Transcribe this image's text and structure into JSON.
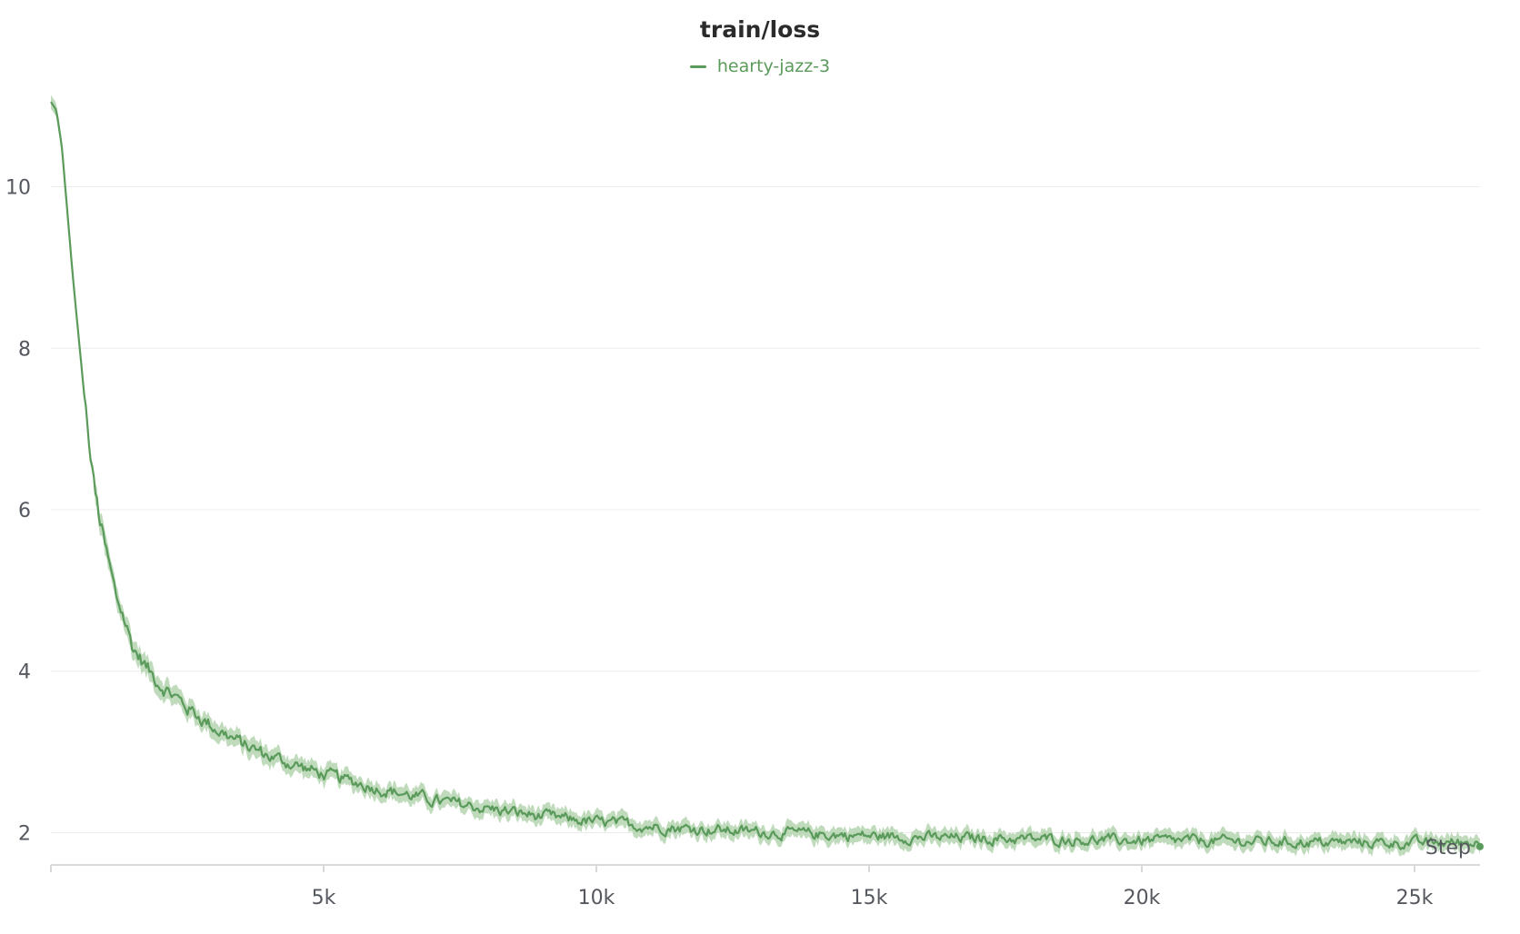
{
  "chart_data": {
    "type": "line",
    "title": "train/loss",
    "xlabel": "Step",
    "ylabel": "",
    "xlim": [
      0,
      26200
    ],
    "ylim": [
      1.6,
      11.3
    ],
    "x_ticks": [
      5000,
      10000,
      15000,
      20000,
      25000
    ],
    "x_tick_labels": [
      "5k",
      "10k",
      "15k",
      "20k",
      "25k"
    ],
    "y_ticks": [
      2,
      4,
      6,
      8,
      10
    ],
    "y_tick_labels": [
      "2",
      "4",
      "6",
      "8",
      "10"
    ],
    "grid": "horizontal",
    "legend": "top-center",
    "series": [
      {
        "name": "hearty-jazz-3",
        "color": "#5a9a5a",
        "band_color": "#a9cfa6",
        "x": [
          0,
          100,
          200,
          400,
          600,
          800,
          1000,
          1200,
          1300,
          1500,
          1800,
          2000,
          2500,
          3000,
          3500,
          4000,
          5000,
          6000,
          7000,
          8000,
          9000,
          10000,
          11000,
          12000,
          13000,
          14000,
          15000,
          16000,
          17000,
          18000,
          19000,
          20000,
          21000,
          22000,
          23000,
          24000,
          25000,
          26200
        ],
        "values": [
          11.05,
          10.95,
          10.5,
          8.9,
          7.5,
          6.2,
          5.5,
          4.9,
          4.75,
          4.3,
          4.0,
          3.85,
          3.55,
          3.3,
          3.1,
          2.95,
          2.72,
          2.55,
          2.4,
          2.3,
          2.2,
          2.13,
          2.08,
          2.04,
          2.01,
          1.98,
          1.96,
          1.94,
          1.93,
          1.92,
          1.91,
          1.9,
          1.9,
          1.89,
          1.88,
          1.88,
          1.87,
          1.88
        ]
      }
    ]
  }
}
